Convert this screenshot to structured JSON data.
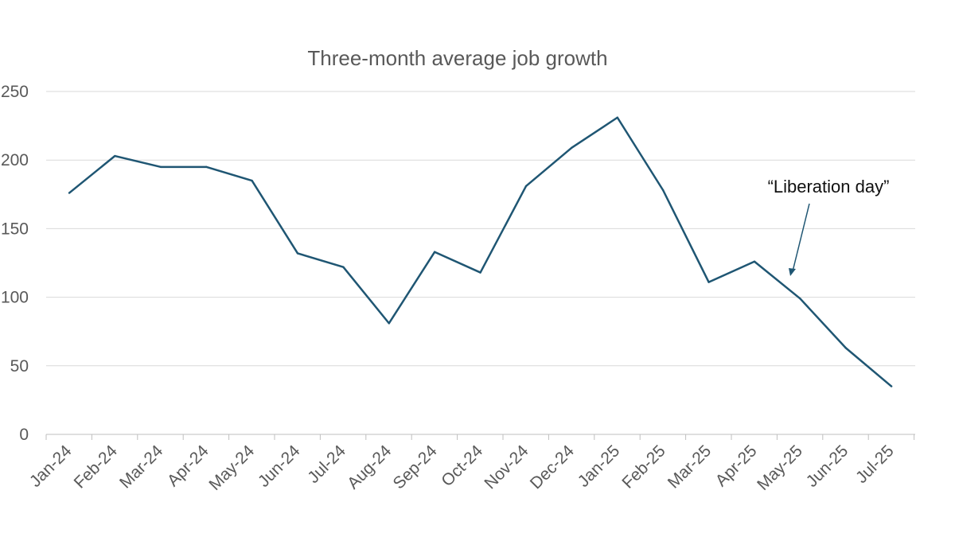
{
  "chart_data": {
    "type": "line",
    "title": "Three-month average job growth",
    "categories": [
      "Jan-24",
      "Feb-24",
      "Mar-24",
      "Apr-24",
      "May-24",
      "Jun-24",
      "Jul-24",
      "Aug-24",
      "Sep-24",
      "Oct-24",
      "Nov-24",
      "Dec-24",
      "Jan-25",
      "Feb-25",
      "Mar-25",
      "Apr-25",
      "May-25",
      "Jun-25",
      "Jul-25"
    ],
    "series": [
      {
        "values": [
          176,
          203,
          195,
          195,
          185,
          132,
          122,
          81,
          133,
          118,
          181,
          209,
          231,
          178,
          111,
          126,
          99,
          63,
          35
        ]
      }
    ],
    "ylim": [
      0,
      250
    ],
    "yticks": [
      "0",
      "50",
      "100",
      "150",
      "200",
      "250"
    ],
    "grid": true,
    "line_color": "#1f5673",
    "annotation": {
      "text": "“Liberation day”",
      "points_to_value": 115
    }
  }
}
